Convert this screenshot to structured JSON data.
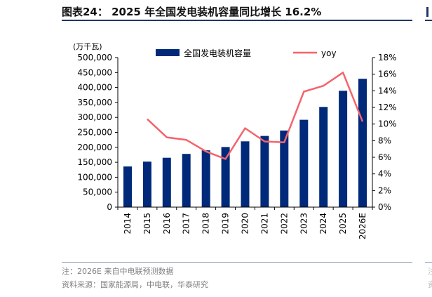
{
  "figure": {
    "title": "图表24：  2025 年全国发电装机容量同比增长 16.2%",
    "note": "注：2026E 来自中电联预测数据",
    "source": "资料来源：国家能源局，中电联，华泰研究"
  },
  "colors": {
    "bar": "#00297a",
    "line": "#f4646c",
    "rule": "#1f3864"
  },
  "chart_data": {
    "type": "bar",
    "categories": [
      "2014",
      "2015",
      "2016",
      "2017",
      "2018",
      "2019",
      "2020",
      "2021",
      "2022",
      "2023",
      "2024",
      "2025",
      "2026E"
    ],
    "series": [
      {
        "name": "全国发电装机容量",
        "kind": "bar",
        "axis": "left",
        "values": [
          136000,
          152000,
          165000,
          178000,
          190000,
          201000,
          220000,
          238000,
          256000,
          292000,
          335000,
          389000,
          429000
        ]
      },
      {
        "name": "yoy",
        "kind": "line",
        "axis": "right",
        "values": [
          null,
          10.6,
          8.4,
          8.1,
          6.7,
          5.8,
          9.5,
          7.9,
          7.8,
          13.9,
          14.6,
          16.2,
          10.3
        ]
      }
    ],
    "left_axis": {
      "unit": "(万千瓦)",
      "min": 0,
      "max": 500000,
      "ticks": [
        "0",
        "50,000",
        "100,000",
        "150,000",
        "200,000",
        "250,000",
        "300,000",
        "350,000",
        "400,000",
        "450,000",
        "500,000"
      ]
    },
    "right_axis": {
      "min": 0,
      "max": 18,
      "ticks": [
        "0%",
        "2%",
        "4%",
        "6%",
        "8%",
        "10%",
        "12%",
        "14%",
        "16%",
        "18%"
      ]
    },
    "legend": {
      "placement": "top",
      "bar_label": "全国发电装机容量",
      "line_label": "yoy"
    },
    "grid": false
  }
}
